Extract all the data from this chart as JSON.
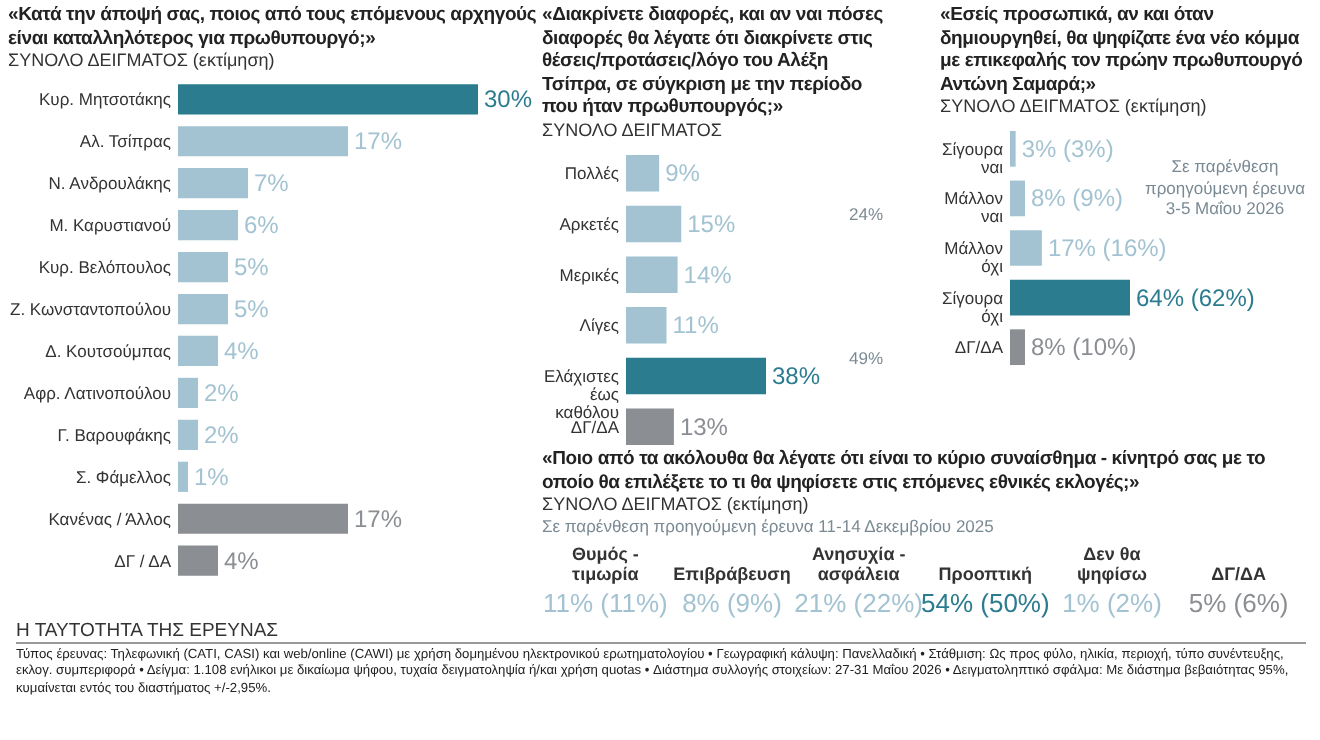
{
  "chart_data": [
    {
      "type": "bar",
      "orientation": "horizontal",
      "title": "«Κατά την άποψή σας, ποιος από τους επόμενους αρχηγούς είναι καταλληλότερος για πρωθυπουργό;»",
      "subtitle": "ΣΥΝΟΛΟ ΔΕΙΓΜΑΤΟΣ (εκτίμηση)",
      "categories": [
        "Κυρ. Μητσοτάκης",
        "Αλ. Τσίπρας",
        "Ν. Ανδρουλάκης",
        "Μ. Καρυστιανού",
        "Κυρ. Βελόπουλος",
        "Ζ. Κωνσταντοπούλου",
        "Δ. Κουτσούμπας",
        "Αφρ. Λατινοπούλου",
        "Γ. Βαρουφάκης",
        "Σ. Φάμελλος",
        "Κανένας / Άλλος",
        "ΔΓ / ΔΑ"
      ],
      "values": [
        30,
        17,
        7,
        6,
        5,
        5,
        4,
        2,
        2,
        1,
        17,
        4
      ],
      "value_labels": [
        "30%",
        "17%",
        "7%",
        "6%",
        "5%",
        "5%",
        "4%",
        "2%",
        "2%",
        "1%",
        "17%",
        "4%"
      ],
      "colors": [
        "#2b7c8f",
        "#a3c3d2",
        "#a3c3d2",
        "#a3c3d2",
        "#a3c3d2",
        "#a3c3d2",
        "#a3c3d2",
        "#a3c3d2",
        "#a3c3d2",
        "#a3c3d2",
        "#8b8e92",
        "#8b8e92"
      ]
    },
    {
      "type": "bar",
      "orientation": "horizontal",
      "title": "«Διακρίνετε διαφορές, και αν ναι πόσες διαφορές θα λέγατε ότι διακρίνετε στις θέσεις/προτάσεις/λόγο του Αλέξη Τσίπρα, σε σύγκριση με την περίοδο που ήταν πρωθυπουργός;»",
      "subtitle": "ΣΥΝΟΛΟ ΔΕΙΓΜΑΤΟΣ",
      "categories": [
        "Πολλές",
        "Αρκετές",
        "Μερικές",
        "Λίγες",
        "Ελάχιστες έως καθόλου",
        "ΔΓ/ΔΑ"
      ],
      "values": [
        9,
        15,
        14,
        11,
        38,
        13
      ],
      "value_labels": [
        "9%",
        "15%",
        "14%",
        "11%",
        "38%",
        "13%"
      ],
      "colors": [
        "#a3c3d2",
        "#a3c3d2",
        "#a3c3d2",
        "#a3c3d2",
        "#2b7c8f",
        "#8b8e92"
      ],
      "annotations": [
        "24%",
        "49%"
      ]
    },
    {
      "type": "bar",
      "orientation": "horizontal",
      "title": "«Εσείς προσωπικά, αν και όταν δημιουργηθεί, θα ψηφίζατε ένα νέο κόμμα με επικεφαλής τον πρώην πρωθυπουργό Αντώνη Σαμαρά;»",
      "subtitle": "ΣΥΝΟΛΟ ΔΕΙΓΜΑΤΟΣ (εκτίμηση)",
      "categories": [
        "Σίγουρα ναι",
        "Μάλλον ναι",
        "Μάλλον όχι",
        "Σίγουρα όχι",
        "ΔΓ/ΔΑ"
      ],
      "values": [
        3,
        8,
        17,
        64,
        8
      ],
      "value_labels": [
        "3% (3%)",
        "8% (9%)",
        "17% (16%)",
        "64% (62%)",
        "8% (10%)"
      ],
      "colors": [
        "#a3c3d2",
        "#a3c3d2",
        "#a3c3d2",
        "#2b7c8f",
        "#8b8e92"
      ],
      "annotations": [
        "Σε παρένθεση προηγούμενη έρευνα 3-5 Μαΐου 2026"
      ]
    },
    {
      "type": "other",
      "title": "«Ποιο από τα ακόλουθα θα λέγατε ότι είναι το κύριο συναίσθημα - κίνητρό σας με το οποίο θα επιλέξετε το τι θα ψηφίσετε στις επόμενες εθνικές εκλογές;»",
      "subtitle": "ΣΥΝΟΛΟ ΔΕΙΓΜΑΤΟΣ (εκτίμηση)",
      "categories": [
        "Θυμός - τιμωρία",
        "Επιβράβευση",
        "Ανησυχία - ασφάλεια",
        "Προοπτική",
        "Δεν θα ψηφίσω",
        "ΔΓ/ΔΑ"
      ],
      "values": [
        11,
        8,
        21,
        54,
        1,
        5
      ],
      "value_labels": [
        "11% (11%)",
        "8% (9%)",
        "21% (22%)",
        "54% (50%)",
        "1% (2%)",
        "5% (6%)"
      ],
      "colors": [
        "#a3c3d2",
        "#a3c3d2",
        "#a3c3d2",
        "#2b7c8f",
        "#a3c3d2",
        "#8b8e92"
      ],
      "annotations": [
        "Σε παρένθεση προηγούμενη έρευνα 11-14 Δεκεμβρίου 2025",
        "Η ΤΑΥΤΟΤΗΤΑ ΤΗΣ ΕΡΕΥΝΑΣ",
        "Τύπος έρευνας: Τηλεφωνική (CATI, CASI) και web/online (CAWI) με χρήση δομημένου ηλεκτρονικού ερωτηματολογίου • Γεωγραφική κάλυψη: Πανελλαδική • Στάθμιση: Ως προς φύλο, ηλικία, περιοχή, τύπο συνέντευξης, εκλογ. συμπεριφορά • Δείγμα: 1.108 ενήλικοι με δικαίωμα ψήφου, τυχαία δειγματοληψία ή/και χρήση quotas • Διάστημα συλλογής στοιχείων: 27-31 Μαΐου 2026 • Δειγματοληπτικό σφάλμα: Με διάστημα βεβαιότητας 95%, κυμαίνεται εντός του διαστήματος +/-2,95%."
      ]
    }
  ]
}
